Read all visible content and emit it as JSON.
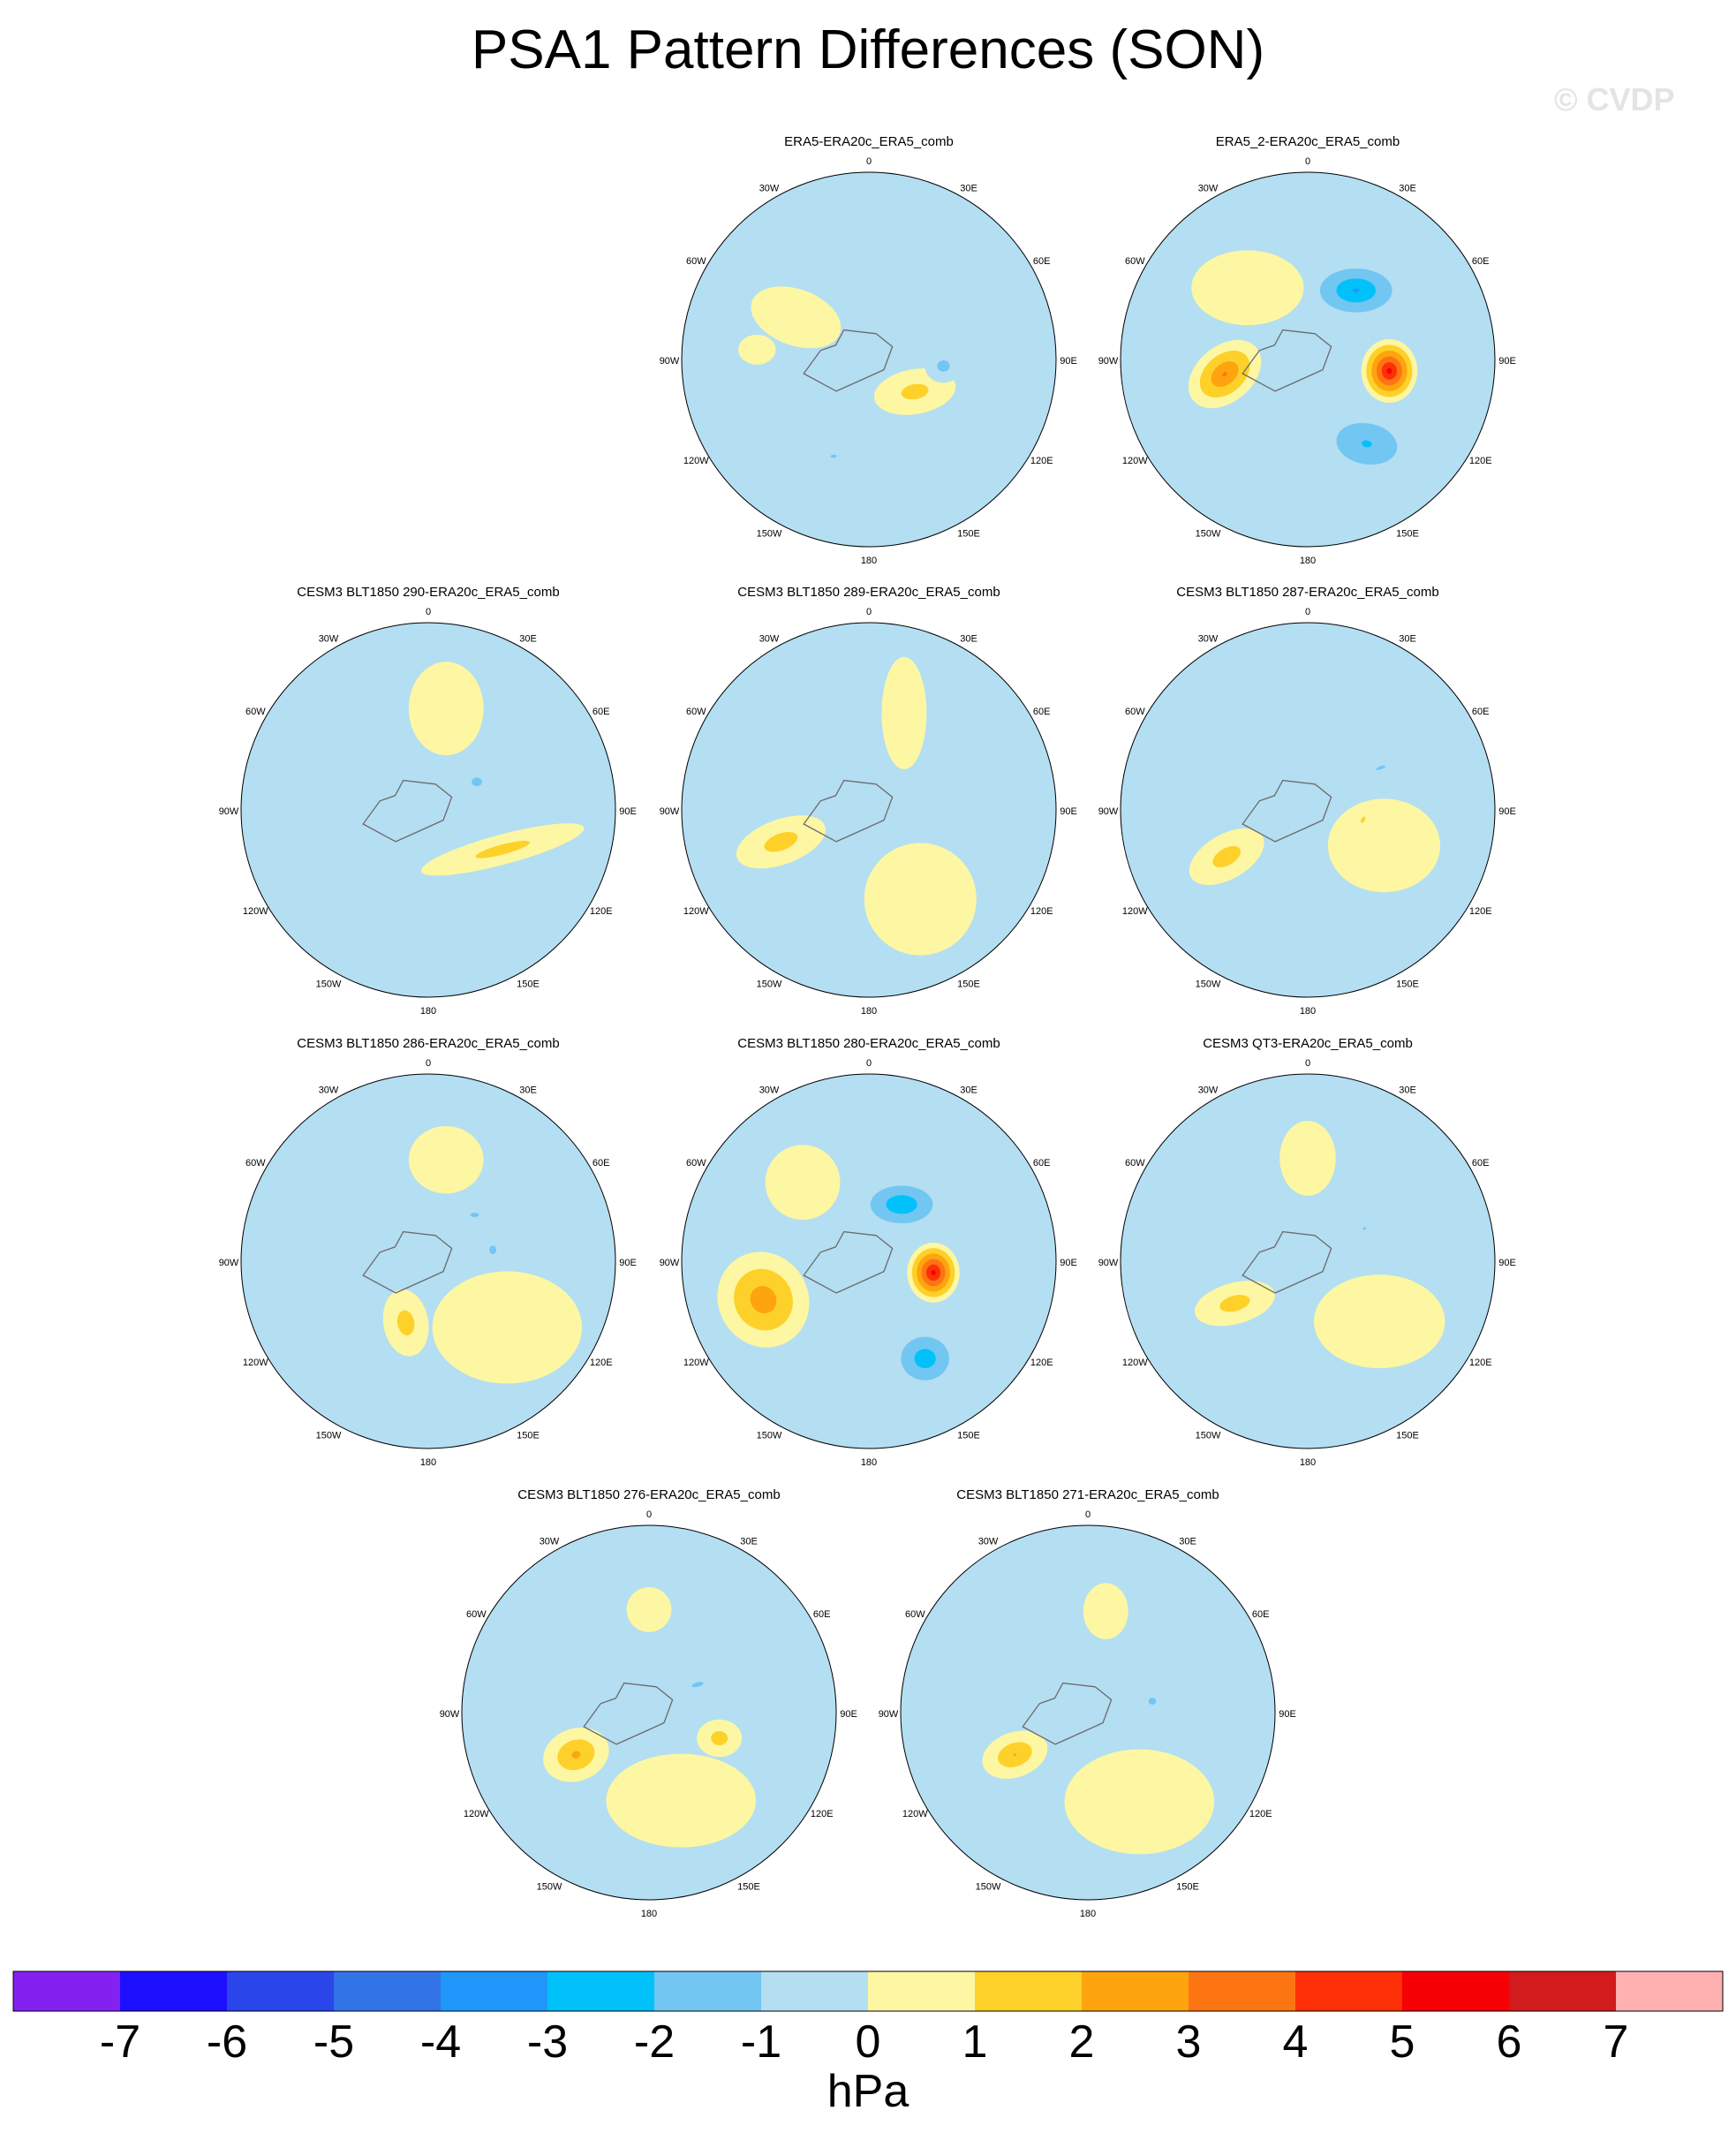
{
  "title": "PSA1 Pattern Differences (SON)",
  "watermark": "© CVDP",
  "chart_data": {
    "type": "polar-contour-panels",
    "units": "hPa",
    "lon_labels": [
      "0",
      "30E",
      "60E",
      "90E",
      "120E",
      "150E",
      "180",
      "150W",
      "120W",
      "90W",
      "60W",
      "30W"
    ],
    "panels": [
      {
        "title": "ERA5-ERA20c_ERA5_comb",
        "features": [
          {
            "lon": 125,
            "colat": 0.3,
            "v": 1.5,
            "rx": 0.22,
            "ry": 0.12,
            "rot": -10
          },
          {
            "lon": 95,
            "colat": 0.4,
            "v": -1.5,
            "rx": 0.1,
            "ry": 0.09,
            "rot": 0
          },
          {
            "lon": 300,
            "colat": 0.45,
            "v": 0.8,
            "rx": 0.25,
            "ry": 0.15,
            "rot": 20
          },
          {
            "lon": 275,
            "colat": 0.6,
            "v": 0.8,
            "rx": 0.1,
            "ry": 0.08,
            "rot": 0
          },
          {
            "lon": 200,
            "colat": 0.55,
            "v": -1.2,
            "rx": 0.1,
            "ry": 0.05,
            "rot": 0
          }
        ]
      },
      {
        "title": "ERA5_2-ERA20c_ERA5_comb",
        "features": [
          {
            "lon": 98,
            "colat": 0.44,
            "v": 5.5,
            "rx": 0.15,
            "ry": 0.17,
            "rot": 0
          },
          {
            "lon": 35,
            "colat": 0.45,
            "v": -3.2,
            "rx": 0.28,
            "ry": 0.17,
            "rot": 0
          },
          {
            "lon": 260,
            "colat": 0.45,
            "v": 3.2,
            "rx": 0.22,
            "ry": 0.15,
            "rot": -40
          },
          {
            "lon": 145,
            "colat": 0.55,
            "v": -2.2,
            "rx": 0.3,
            "ry": 0.2,
            "rot": 10
          },
          {
            "lon": 320,
            "colat": 0.5,
            "v": 1.0,
            "rx": 0.3,
            "ry": 0.2,
            "rot": 0
          }
        ]
      },
      {
        "title": "CESM3 BLT1850 290-ERA20c_ERA5_comb",
        "features": [
          {
            "lon": 118,
            "colat": 0.45,
            "v": 1.5,
            "rx": 0.45,
            "ry": 0.08,
            "rot": -15
          },
          {
            "lon": 60,
            "colat": 0.3,
            "v": -1.3,
            "rx": 0.12,
            "ry": 0.1,
            "rot": 0
          },
          {
            "lon": 10,
            "colat": 0.55,
            "v": 0.8,
            "rx": 0.2,
            "ry": 0.25,
            "rot": 0
          },
          {
            "lon": 315,
            "colat": 0.55,
            "v": -1.0,
            "rx": 0.12,
            "ry": 0.08,
            "rot": 0
          }
        ]
      },
      {
        "title": "CESM3 BLT1850 289-ERA20c_ERA5_comb",
        "features": [
          {
            "lon": 250,
            "colat": 0.5,
            "v": 1.6,
            "rx": 0.25,
            "ry": 0.12,
            "rot": -20
          },
          {
            "lon": 150,
            "colat": 0.55,
            "v": 0.8,
            "rx": 0.3,
            "ry": 0.3,
            "rot": 0
          },
          {
            "lon": 20,
            "colat": 0.55,
            "v": 0.8,
            "rx": 0.12,
            "ry": 0.3,
            "rot": 0
          }
        ]
      },
      {
        "title": "CESM3 BLT1850 287-ERA20c_ERA5_comb",
        "features": [
          {
            "lon": 240,
            "colat": 0.5,
            "v": 1.6,
            "rx": 0.22,
            "ry": 0.12,
            "rot": -30
          },
          {
            "lon": 115,
            "colat": 0.45,
            "v": 0.8,
            "rx": 0.3,
            "ry": 0.25,
            "rot": 0
          },
          {
            "lon": 60,
            "colat": 0.45,
            "v": -1.2,
            "rx": 0.16,
            "ry": 0.05,
            "rot": -20
          },
          {
            "lon": 100,
            "colat": 0.3,
            "v": 1.3,
            "rx": 0.08,
            "ry": 0.04,
            "rot": -60
          }
        ]
      },
      {
        "title": "CESM3 BLT1850 286-ERA20c_ERA5_comb",
        "features": [
          {
            "lon": 200,
            "colat": 0.35,
            "v": 1.6,
            "rx": 0.12,
            "ry": 0.18,
            "rot": -10
          },
          {
            "lon": 130,
            "colat": 0.55,
            "v": 0.8,
            "rx": 0.4,
            "ry": 0.3,
            "rot": 0
          },
          {
            "lon": 10,
            "colat": 0.55,
            "v": 0.8,
            "rx": 0.2,
            "ry": 0.18,
            "rot": 0
          },
          {
            "lon": 80,
            "colat": 0.35,
            "v": -1.3,
            "rx": 0.08,
            "ry": 0.1,
            "rot": 0
          },
          {
            "lon": 45,
            "colat": 0.35,
            "v": -1.3,
            "rx": 0.1,
            "ry": 0.05,
            "rot": 0
          }
        ]
      },
      {
        "title": "CESM3 BLT1850 280-ERA20c_ERA5_comb",
        "features": [
          {
            "lon": 100,
            "colat": 0.35,
            "v": 5.5,
            "rx": 0.14,
            "ry": 0.16,
            "rot": 0
          },
          {
            "lon": 30,
            "colat": 0.35,
            "v": -3.0,
            "rx": 0.25,
            "ry": 0.15,
            "rot": 0
          },
          {
            "lon": 250,
            "colat": 0.6,
            "v": 2.8,
            "rx": 0.24,
            "ry": 0.26,
            "rot": -30
          },
          {
            "lon": 150,
            "colat": 0.6,
            "v": -2.8,
            "rx": 0.2,
            "ry": 0.18,
            "rot": 0
          },
          {
            "lon": 320,
            "colat": 0.55,
            "v": 1.0,
            "rx": 0.2,
            "ry": 0.2,
            "rot": 0
          }
        ]
      },
      {
        "title": "CESM3 QT3-ERA20c_ERA5_comb",
        "features": [
          {
            "lon": 240,
            "colat": 0.45,
            "v": 1.6,
            "rx": 0.22,
            "ry": 0.11,
            "rot": -15
          },
          {
            "lon": 130,
            "colat": 0.5,
            "v": 0.8,
            "rx": 0.35,
            "ry": 0.25,
            "rot": 0
          },
          {
            "lon": 0,
            "colat": 0.55,
            "v": 0.8,
            "rx": 0.15,
            "ry": 0.2,
            "rot": 0
          },
          {
            "lon": 60,
            "colat": 0.35,
            "v": -1.2,
            "rx": 0.05,
            "ry": 0.04,
            "rot": 0
          }
        ]
      },
      {
        "title": "CESM3 BLT1850 276-ERA20c_ERA5_comb",
        "features": [
          {
            "lon": 240,
            "colat": 0.45,
            "v": 2.3,
            "rx": 0.18,
            "ry": 0.14,
            "rot": -20
          },
          {
            "lon": 110,
            "colat": 0.4,
            "v": 1.6,
            "rx": 0.12,
            "ry": 0.1,
            "rot": 0
          },
          {
            "lon": 160,
            "colat": 0.5,
            "v": 0.8,
            "rx": 0.4,
            "ry": 0.25,
            "rot": 0
          },
          {
            "lon": 60,
            "colat": 0.3,
            "v": -1.3,
            "rx": 0.14,
            "ry": 0.05,
            "rot": -15
          },
          {
            "lon": 0,
            "colat": 0.55,
            "v": 0.8,
            "rx": 0.12,
            "ry": 0.12,
            "rot": 0
          }
        ]
      },
      {
        "title": "CESM3 BLT1850 271-ERA20c_ERA5_comb",
        "features": [
          {
            "lon": 240,
            "colat": 0.45,
            "v": 2.1,
            "rx": 0.18,
            "ry": 0.12,
            "rot": -20
          },
          {
            "lon": 150,
            "colat": 0.55,
            "v": 0.8,
            "rx": 0.4,
            "ry": 0.28,
            "rot": 0
          },
          {
            "lon": 80,
            "colat": 0.35,
            "v": -1.3,
            "rx": 0.09,
            "ry": 0.08,
            "rot": 0
          },
          {
            "lon": 10,
            "colat": 0.55,
            "v": 0.8,
            "rx": 0.12,
            "ry": 0.15,
            "rot": 0
          }
        ]
      }
    ],
    "colorbar": {
      "label": "hPa",
      "ticks": [
        "-7",
        "-6",
        "-5",
        "-4",
        "-3",
        "-2",
        "-1",
        "0",
        "1",
        "2",
        "3",
        "4",
        "5",
        "6",
        "7"
      ],
      "levels": [
        -7,
        -6,
        -5,
        -4,
        -3,
        -2,
        -1,
        0,
        1,
        2,
        3,
        4,
        5,
        6,
        7
      ],
      "colors": [
        "#8521f0",
        "#1f0fff",
        "#2a46ea",
        "#3373e8",
        "#1f97fa",
        "#00c1fa",
        "#72c6f2",
        "#b4def2",
        "#fdf7a3",
        "#fdd129",
        "#fda40f",
        "#fd7512",
        "#fd3007",
        "#f50106",
        "#d11b1c",
        "#ffb1b1"
      ]
    }
  }
}
